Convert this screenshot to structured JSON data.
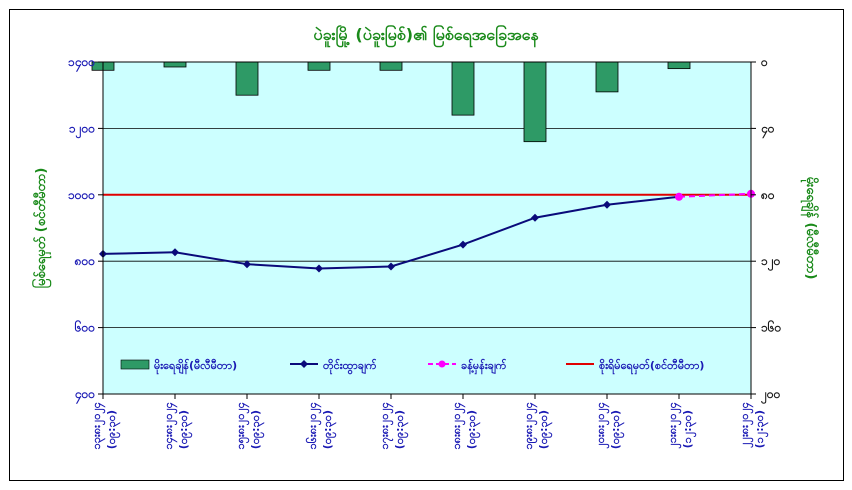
{
  "chart_data": {
    "type": "bar+line",
    "title": "ပဲခူးမြို့ (ပဲခူးမြစ်)၏ မြစ်ရေအခြေအနေ",
    "ylabel_left": "မြစ်ရေမှတ် (စင်တီမီတာ)",
    "ylabel_right": "မိုးရေချိန် (မီလီမီတာ)",
    "categories": [
      [
        "၁၃း၈း၂၀၂၄",
        "(၀၉:၃၀)"
      ],
      [
        "၁၄း၈း၂၀၂၄",
        "(၀၉:၃၀)"
      ],
      [
        "၁၅း၈း၂၀၂၄",
        "(၀၉:၃၀)"
      ],
      [
        "၁၆း၈း၂၀၂၄",
        "(၀၉:၃၀)"
      ],
      [
        "၁၇း၈း၂၀၂၄",
        "(၀၉:၃၀)"
      ],
      [
        "၁၈း၈း၂၀၂၄",
        "(၀၉:၃၀)"
      ],
      [
        "၁၉း၈း၂၀၂၄",
        "(၀၉:၃၀)"
      ],
      [
        "၂၀း၈း၂၀၂၄",
        "(၀၉:၃၀)"
      ],
      [
        "၂၁း၈း၂၀၂၄",
        "(၁၂:၃၀)"
      ],
      [
        "၂၂း၈း၂၀၂၄",
        "(၁၂:၃၀)"
      ]
    ],
    "yticks_left": [
      "၄၀၀",
      "၆၀၀",
      "၈၀၀",
      "၁၀၀၀",
      "၁၂၀၀",
      "၁၄၀၀"
    ],
    "yticks_right": [
      "၂၀၀",
      "၁၆၀",
      "၁၂၀",
      "၈၀",
      "၄၀",
      "၀"
    ],
    "ylim_left": [
      400,
      1400
    ],
    "ylim_right": [
      0,
      200
    ],
    "right_axis_inverted": true,
    "series": [
      {
        "name": "မိုးရေချိန်(မီလီမီတာ)",
        "kind": "bar",
        "axis": "right",
        "color": "#2e9a66",
        "values": [
          5,
          3,
          20,
          5,
          5,
          32,
          48,
          18,
          4,
          null
        ]
      },
      {
        "name": "တိုင်းထွာချက်",
        "kind": "line",
        "axis": "left",
        "color": "#0a0a7a",
        "values": [
          822,
          827,
          791,
          778,
          784,
          850,
          931,
          970,
          994,
          null
        ]
      },
      {
        "name": "ခန့်မှန်းချက်",
        "kind": "line-dashed",
        "axis": "left",
        "color": "#ff00ff",
        "values": [
          null,
          null,
          null,
          null,
          null,
          null,
          null,
          null,
          994,
          1003
        ]
      },
      {
        "name": "စိုးရိမ်ရေမှတ်(စင်တီမီတာ)",
        "kind": "hline",
        "axis": "left",
        "color": "#e00000",
        "value": 1000
      }
    ],
    "grid": true,
    "legend": "bottom-inside"
  }
}
